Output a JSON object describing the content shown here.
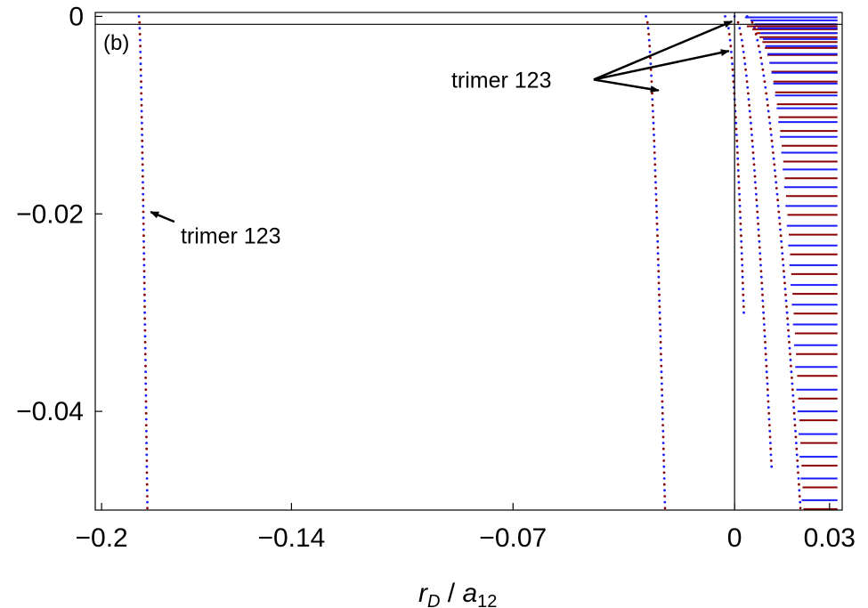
{
  "chart_data": {
    "type": "scatter",
    "panel_label": "(b)",
    "xlabel": {
      "r": "r",
      "r_sub": "D",
      "slash": " / ",
      "a": "a",
      "a_sub": "12"
    },
    "xlim": [
      -0.202,
      0.034
    ],
    "ylim": [
      -0.05,
      0.0004
    ],
    "x_ticks": [
      {
        "value": -0.2,
        "label": "−0.2"
      },
      {
        "value": -0.14,
        "label": "−0.14"
      },
      {
        "value": -0.07,
        "label": "−0.07"
      },
      {
        "value": 0,
        "label": "0"
      },
      {
        "value": 0.03,
        "label": "0.03"
      }
    ],
    "y_ticks": [
      {
        "value": 0,
        "label": "0"
      },
      {
        "value": -0.02,
        "label": "−0.02"
      },
      {
        "value": -0.04,
        "label": "−0.04"
      }
    ],
    "reference_lines": {
      "x": 0,
      "y": -0.0008
    },
    "colors": {
      "blue": "#1a1aff",
      "red": "#8b0000",
      "axis": "#000000"
    },
    "series": [
      {
        "values": [
          {
            "x0": -0.1882,
            "x1": -0.183,
            "a": -0.1882,
            "b": 0.0002,
            "c": 9.6e-06,
            "ystart": 0.0,
            "yend": -0.05,
            "step": 0.0006
          },
          {
            "x0": -0.028,
            "x1": -0.016,
            "a": -0.028,
            "b": 0.0006,
            "c": 0.0,
            "ystart": 0.0,
            "yend": -0.05,
            "step": 0.0006
          },
          {
            "x0": -0.003,
            "x1": 0.0,
            "a": -0.003,
            "b": 0.001,
            "c": 0.0,
            "ystart": 0.0,
            "yend": -0.03,
            "step": 0.0006
          },
          {
            "x0": 0.0,
            "x1": 0.015,
            "a": 0.0,
            "b": 0.0014,
            "c": 0.0,
            "ystart": 0.0,
            "yend": -0.046,
            "step": 0.0006
          },
          {
            "x0": 0.004,
            "x1": 0.022,
            "a": 0.004,
            "b": 0.002,
            "c": 0.0,
            "ystart": 0.0,
            "yend": -0.05,
            "step": 0.0006
          }
        ]
      }
    ],
    "horizontal_levels": {
      "x_right": 0.0325,
      "rows": [
        -0.0001,
        -0.0004,
        -0.0008,
        -0.0012,
        -0.0017,
        -0.0023,
        -0.003,
        -0.0038,
        -0.0047,
        -0.0057,
        -0.0068,
        -0.008,
        -0.0093,
        -0.0107,
        -0.0122,
        -0.0138,
        -0.0155,
        -0.0173,
        -0.0192,
        -0.0212,
        -0.0232,
        -0.0252,
        -0.0272,
        -0.0292,
        -0.0312,
        -0.0333,
        -0.0355,
        -0.0378,
        -0.04,
        -0.0423,
        -0.0446,
        -0.0468,
        -0.049
      ]
    },
    "annotations": [
      {
        "text": "trimer 123",
        "x": -0.175,
        "y": -0.023,
        "arrows": [
          {
            "x": -0.1845,
            "y": -0.0198,
            "from_x": -0.177,
            "from_y": -0.0208
          }
        ]
      },
      {
        "text": "trimer 123",
        "x": -0.0895,
        "y": -0.0072,
        "arrows": [
          {
            "x": -0.0008,
            "y": -0.0005,
            "from_x": -0.0445,
            "from_y": -0.0064
          },
          {
            "x": -0.0018,
            "y": -0.0035,
            "from_x": -0.0445,
            "from_y": -0.0064
          },
          {
            "x": -0.024,
            "y": -0.0075,
            "from_x": -0.0445,
            "from_y": -0.0064
          }
        ]
      }
    ]
  }
}
